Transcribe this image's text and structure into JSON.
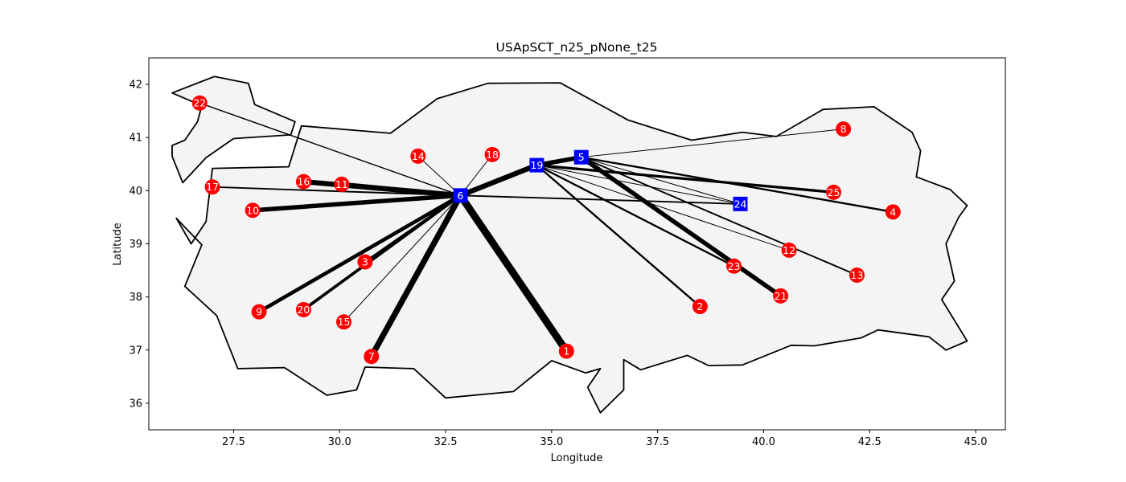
{
  "chart_data": {
    "type": "scatter",
    "title": "USApSCT_n25_pNone_t25",
    "xlabel": "Longitude",
    "ylabel": "Latitude",
    "xlim": [
      25.5,
      45.7
    ],
    "ylim": [
      35.5,
      42.5
    ],
    "xticks": [
      27.5,
      30.0,
      32.5,
      35.0,
      37.5,
      40.0,
      42.5,
      45.0
    ],
    "xtick_labels": [
      "27.5",
      "30.0",
      "32.5",
      "35.0",
      "37.5",
      "40.0",
      "42.5",
      "45.0"
    ],
    "yticks": [
      36,
      37,
      38,
      39,
      40,
      41,
      42
    ],
    "ytick_labels": [
      "36",
      "37",
      "38",
      "39",
      "40",
      "41",
      "42"
    ],
    "grid": false,
    "colors": {
      "map_fill": "#f4f4f4",
      "map_outline": "#000000",
      "customer": "#ff0000",
      "hub": "#0000ff",
      "edge": "#000000",
      "label": "#ffffff"
    },
    "map_outlines": [
      [
        [
          26.05,
          41.84
        ],
        [
          27.05,
          42.15
        ],
        [
          27.85,
          42.02
        ],
        [
          28.0,
          41.62
        ],
        [
          28.95,
          41.3
        ],
        [
          28.85,
          41.05
        ],
        [
          27.5,
          40.98
        ],
        [
          26.85,
          40.62
        ],
        [
          26.3,
          40.15
        ],
        [
          26.05,
          40.65
        ],
        [
          26.05,
          40.85
        ],
        [
          26.35,
          40.95
        ],
        [
          26.65,
          41.3
        ],
        [
          26.75,
          41.6
        ],
        [
          26.05,
          41.84
        ]
      ],
      [
        [
          26.15,
          39.48
        ],
        [
          26.5,
          39.0
        ],
        [
          26.85,
          39.42
        ],
        [
          27.0,
          40.42
        ],
        [
          28.8,
          40.45
        ],
        [
          29.1,
          41.22
        ],
        [
          31.2,
          41.08
        ],
        [
          32.3,
          41.73
        ],
        [
          33.5,
          42.02
        ],
        [
          35.2,
          42.03
        ],
        [
          36.8,
          41.33
        ],
        [
          38.3,
          40.95
        ],
        [
          39.5,
          41.1
        ],
        [
          40.3,
          41.02
        ],
        [
          41.4,
          41.53
        ],
        [
          42.6,
          41.58
        ],
        [
          43.5,
          41.1
        ],
        [
          43.7,
          40.75
        ],
        [
          43.6,
          40.26
        ],
        [
          44.4,
          40.02
        ],
        [
          44.8,
          39.72
        ],
        [
          44.6,
          39.5
        ],
        [
          44.3,
          39.0
        ],
        [
          44.5,
          38.3
        ],
        [
          44.2,
          37.95
        ],
        [
          44.8,
          37.17
        ],
        [
          44.3,
          37.0
        ],
        [
          43.9,
          37.25
        ],
        [
          42.7,
          37.38
        ],
        [
          42.3,
          37.23
        ],
        [
          41.2,
          37.08
        ],
        [
          40.65,
          37.09
        ],
        [
          39.5,
          36.72
        ],
        [
          38.7,
          36.71
        ],
        [
          38.2,
          36.9
        ],
        [
          37.1,
          36.63
        ],
        [
          36.7,
          36.82
        ],
        [
          36.7,
          36.25
        ],
        [
          36.15,
          35.82
        ],
        [
          35.85,
          36.3
        ],
        [
          36.15,
          36.65
        ],
        [
          35.8,
          36.57
        ],
        [
          35.0,
          36.8
        ],
        [
          34.1,
          36.22
        ],
        [
          32.5,
          36.1
        ],
        [
          31.75,
          36.65
        ],
        [
          30.6,
          36.68
        ],
        [
          30.4,
          36.25
        ],
        [
          29.7,
          36.15
        ],
        [
          28.7,
          36.67
        ],
        [
          27.6,
          36.65
        ],
        [
          27.1,
          37.65
        ],
        [
          26.35,
          38.2
        ],
        [
          26.75,
          38.98
        ],
        [
          26.15,
          39.48
        ]
      ]
    ],
    "nodes": [
      {
        "id": "1",
        "x": 35.35,
        "y": 36.98,
        "role": "customer"
      },
      {
        "id": "2",
        "x": 38.5,
        "y": 37.82,
        "role": "customer"
      },
      {
        "id": "3",
        "x": 30.6,
        "y": 38.66,
        "role": "customer"
      },
      {
        "id": "4",
        "x": 43.05,
        "y": 39.6,
        "role": "customer"
      },
      {
        "id": "5",
        "x": 35.7,
        "y": 40.63,
        "role": "hub"
      },
      {
        "id": "6",
        "x": 32.85,
        "y": 39.91,
        "role": "hub"
      },
      {
        "id": "7",
        "x": 30.75,
        "y": 36.88,
        "role": "customer"
      },
      {
        "id": "8",
        "x": 41.88,
        "y": 41.16,
        "role": "customer"
      },
      {
        "id": "9",
        "x": 28.1,
        "y": 37.72,
        "role": "customer"
      },
      {
        "id": "10",
        "x": 27.95,
        "y": 39.63,
        "role": "customer"
      },
      {
        "id": "11",
        "x": 30.05,
        "y": 40.12,
        "role": "customer"
      },
      {
        "id": "12",
        "x": 40.6,
        "y": 38.88,
        "role": "customer"
      },
      {
        "id": "13",
        "x": 42.2,
        "y": 38.41,
        "role": "customer"
      },
      {
        "id": "14",
        "x": 31.85,
        "y": 40.65,
        "role": "customer"
      },
      {
        "id": "15",
        "x": 30.1,
        "y": 37.53,
        "role": "customer"
      },
      {
        "id": "16",
        "x": 29.15,
        "y": 40.17,
        "role": "customer"
      },
      {
        "id": "17",
        "x": 27.0,
        "y": 40.07,
        "role": "customer"
      },
      {
        "id": "18",
        "x": 33.6,
        "y": 40.68,
        "role": "customer"
      },
      {
        "id": "19",
        "x": 34.65,
        "y": 40.48,
        "role": "hub"
      },
      {
        "id": "20",
        "x": 29.15,
        "y": 37.76,
        "role": "customer"
      },
      {
        "id": "21",
        "x": 40.4,
        "y": 38.02,
        "role": "customer"
      },
      {
        "id": "22",
        "x": 26.7,
        "y": 41.65,
        "role": "customer"
      },
      {
        "id": "23",
        "x": 39.3,
        "y": 38.58,
        "role": "customer"
      },
      {
        "id": "24",
        "x": 39.45,
        "y": 39.75,
        "role": "hub"
      },
      {
        "id": "25",
        "x": 41.65,
        "y": 39.97,
        "role": "customer"
      }
    ],
    "edges": [
      {
        "from": "6",
        "to": "1",
        "weight": 10
      },
      {
        "from": "6",
        "to": "7",
        "weight": 8
      },
      {
        "from": "6",
        "to": "16",
        "weight": 7
      },
      {
        "from": "6",
        "to": "11",
        "weight": 6
      },
      {
        "from": "6",
        "to": "19",
        "weight": 7
      },
      {
        "from": "6",
        "to": "10",
        "weight": 6
      },
      {
        "from": "6",
        "to": "9",
        "weight": 5
      },
      {
        "from": "6",
        "to": "20",
        "weight": 4
      },
      {
        "from": "6",
        "to": "3",
        "weight": 3
      },
      {
        "from": "6",
        "to": "17",
        "weight": 2
      },
      {
        "from": "6",
        "to": "24",
        "weight": 2
      },
      {
        "from": "6",
        "to": "22",
        "weight": 1.5
      },
      {
        "from": "6",
        "to": "15",
        "weight": 1
      },
      {
        "from": "6",
        "to": "14",
        "weight": 1
      },
      {
        "from": "6",
        "to": "18",
        "weight": 1
      },
      {
        "from": "19",
        "to": "5",
        "weight": 6
      },
      {
        "from": "19",
        "to": "25",
        "weight": 3.5
      },
      {
        "from": "19",
        "to": "2",
        "weight": 2.5
      },
      {
        "from": "19",
        "to": "23",
        "weight": 2.5
      },
      {
        "from": "19",
        "to": "12",
        "weight": 1
      },
      {
        "from": "19",
        "to": "24",
        "weight": 1
      },
      {
        "from": "5",
        "to": "21",
        "weight": 6
      },
      {
        "from": "5",
        "to": "4",
        "weight": 2.5
      },
      {
        "from": "5",
        "to": "13",
        "weight": 2
      },
      {
        "from": "5",
        "to": "8",
        "weight": 1
      },
      {
        "from": "5",
        "to": "24",
        "weight": 1
      }
    ]
  }
}
